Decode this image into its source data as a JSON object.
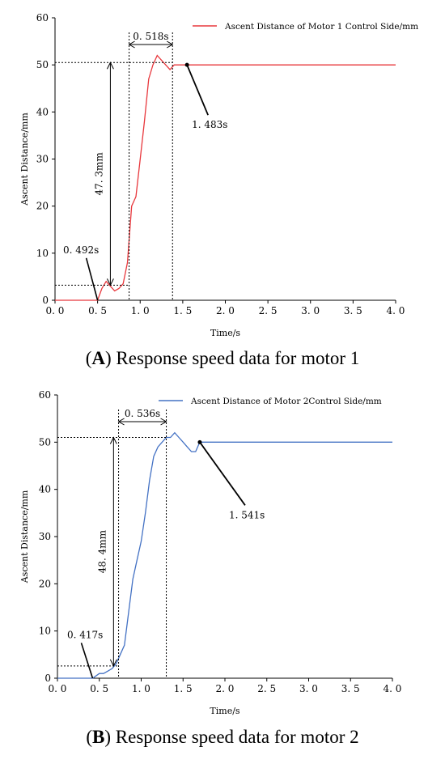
{
  "chart_data": [
    {
      "type": "line",
      "panel": "A",
      "xlabel": "Time/s",
      "ylabel": "Ascent Distance/mm",
      "xlim": [
        0.0,
        4.0
      ],
      "ylim": [
        0,
        60
      ],
      "xticks": [
        "0. 0",
        "0. 5",
        "1. 0",
        "1. 5",
        "2. 0",
        "2. 5",
        "3. 0",
        "3. 5",
        "4. 0"
      ],
      "yticks": [
        "0",
        "10",
        "20",
        "30",
        "40",
        "50",
        "60"
      ],
      "grid": false,
      "legend_position": "top-right",
      "series": [
        {
          "name": "Ascent Distance of Motor 1 Control Side/mm",
          "color": "#e8383d",
          "x": [
            0.0,
            0.4,
            0.5,
            0.55,
            0.6,
            0.65,
            0.7,
            0.75,
            0.8,
            0.85,
            0.9,
            0.95,
            1.0,
            1.05,
            1.1,
            1.15,
            1.2,
            1.25,
            1.3,
            1.35,
            1.4,
            1.45,
            1.483,
            1.55,
            2.0,
            3.0,
            4.0
          ],
          "y": [
            0,
            0,
            0,
            2.5,
            4,
            3,
            2,
            2.5,
            3.5,
            8,
            20,
            22,
            30,
            38,
            47,
            50,
            52,
            51,
            50,
            49,
            50,
            50,
            50,
            50,
            50,
            50,
            50
          ]
        }
      ],
      "annotations": {
        "start_time": "0. 492s",
        "rise_span": "0. 518s",
        "rise_height": "47. 3mm",
        "settle_time": "1. 483s"
      },
      "caption_label": "A",
      "caption_text": ") Response speed data for motor 1"
    },
    {
      "type": "line",
      "panel": "B",
      "xlabel": "Time/s",
      "ylabel": "Ascent Distance/mm",
      "xlim": [
        0.0,
        4.0
      ],
      "ylim": [
        0,
        60
      ],
      "xticks": [
        "0. 0",
        "0. 5",
        "1. 0",
        "1. 5",
        "2. 0",
        "2. 5",
        "3. 0",
        "3. 5",
        "4. 0"
      ],
      "yticks": [
        "0",
        "10",
        "20",
        "30",
        "40",
        "50",
        "60"
      ],
      "grid": false,
      "legend_position": "top-right",
      "series": [
        {
          "name": "Ascent Distance of Motor 2Control Side/mm",
          "color": "#4472c4",
          "x": [
            0.0,
            0.4,
            0.42,
            0.5,
            0.55,
            0.6,
            0.65,
            0.7,
            0.75,
            0.8,
            0.85,
            0.9,
            0.95,
            1.0,
            1.05,
            1.1,
            1.15,
            1.2,
            1.25,
            1.3,
            1.35,
            1.4,
            1.45,
            1.5,
            1.55,
            1.6,
            1.65,
            1.7,
            2.0,
            3.0,
            4.0
          ],
          "y": [
            0,
            0,
            0,
            1,
            1,
            1.5,
            2,
            3,
            5,
            7,
            14,
            21,
            25,
            29,
            35,
            42,
            47,
            49,
            50,
            51,
            51,
            52,
            51,
            50,
            49,
            48,
            48,
            50,
            50,
            50,
            50
          ]
        }
      ],
      "annotations": {
        "start_time": "0. 417s",
        "rise_span": "0. 536s",
        "rise_height": "48. 4mm",
        "settle_time": "1. 541s"
      },
      "caption_label": "B",
      "caption_text": ") Response speed data for motor 2"
    }
  ]
}
